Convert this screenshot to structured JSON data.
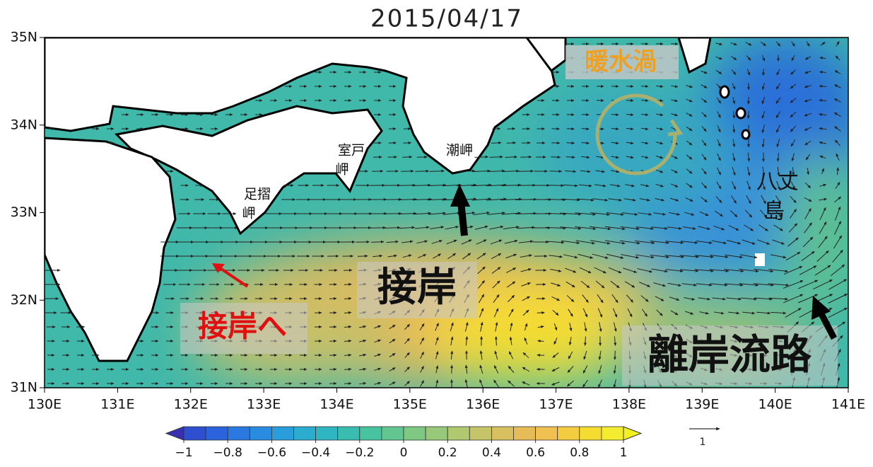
{
  "title": "2015/04/17",
  "map": {
    "xlim": [
      130,
      141
    ],
    "ylim": [
      31,
      35
    ],
    "xticks": [
      {
        "value": 130,
        "label": "130E"
      },
      {
        "value": 131,
        "label": "131E"
      },
      {
        "value": 132,
        "label": "132E"
      },
      {
        "value": 133,
        "label": "133E"
      },
      {
        "value": 134,
        "label": "134E"
      },
      {
        "value": 135,
        "label": "135E"
      },
      {
        "value": 136,
        "label": "136E"
      },
      {
        "value": 137,
        "label": "137E"
      },
      {
        "value": 138,
        "label": "138E"
      },
      {
        "value": 139,
        "label": "139E"
      },
      {
        "value": 140,
        "label": "140E"
      },
      {
        "value": 141,
        "label": "141E"
      }
    ],
    "yticks": [
      {
        "value": 31,
        "label": "31N"
      },
      {
        "value": 32,
        "label": "32N"
      },
      {
        "value": 33,
        "label": "33N"
      },
      {
        "value": 34,
        "label": "34N"
      },
      {
        "value": 35,
        "label": "35N"
      }
    ]
  },
  "place_names": {
    "muroto": [
      "室戸",
      "岬"
    ],
    "ashizuri": [
      "足摺",
      "岬"
    ],
    "shiono": [
      "潮岬"
    ],
    "hachijo": [
      "八丈",
      "島"
    ]
  },
  "annotations": {
    "warm_eddy": "暖水渦",
    "approach": "接岸",
    "toward_approach": "接岸へ",
    "offshore_path": "離岸流路"
  },
  "colorbar": {
    "lim": [
      -1,
      1
    ],
    "ticks": [
      {
        "value": -1,
        "label": "−1"
      },
      {
        "value": -0.8,
        "label": "−0.8"
      },
      {
        "value": -0.6,
        "label": "−0.6"
      },
      {
        "value": -0.4,
        "label": "−0.4"
      },
      {
        "value": -0.2,
        "label": "−0.2"
      },
      0,
      0.2,
      0.4,
      0.6,
      0.8,
      1
    ],
    "colors": [
      "#3a2fb0",
      "#2d4fd0",
      "#2a63dc",
      "#2a78e0",
      "#2a8ce0",
      "#2a9edc",
      "#2cadd0",
      "#30b6c0",
      "#38bdb0",
      "#48c3a0",
      "#62c690",
      "#7ec884",
      "#98c87a",
      "#b0c870",
      "#c6c468",
      "#d8c060",
      "#e6bc58",
      "#f0c050",
      "#f4cc40",
      "#f6dc30",
      "#f4ec30",
      "#f2f020"
    ],
    "reference_vector": 1
  }
}
